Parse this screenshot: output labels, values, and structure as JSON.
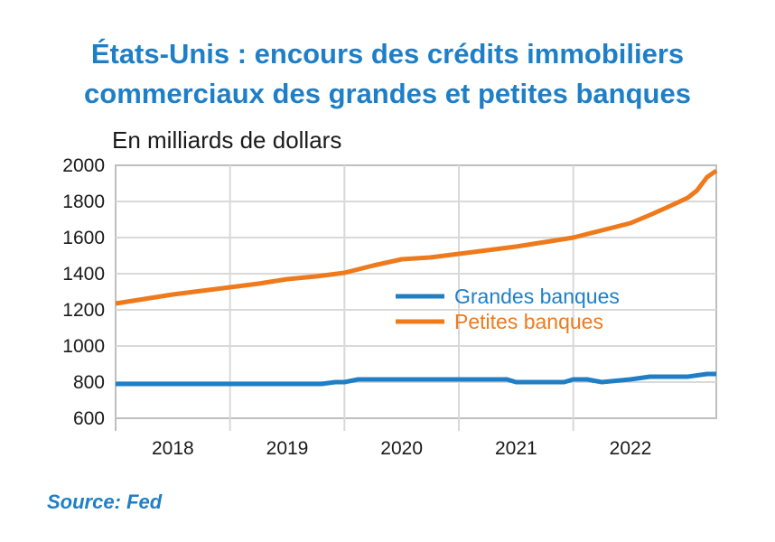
{
  "header": {
    "title_line1": "États-Unis : encours des crédits immobiliers",
    "title_line2": "commerciaux des grandes et petites banques",
    "unit_label": "En milliards de dollars"
  },
  "footer": {
    "source": "Source: Fed"
  },
  "colors": {
    "grandes": "#1f7fc6",
    "petites": "#ee7a1c",
    "grid": "#d9d9d9",
    "axis": "#bfbfbf"
  },
  "chart_data": {
    "type": "line",
    "title": "États-Unis : encours des crédits immobiliers commerciaux des grandes et petites banques",
    "ylabel": "En milliards de dollars",
    "ylim": [
      600,
      2000
    ],
    "yticks": [
      600,
      800,
      1000,
      1200,
      1400,
      1600,
      1800,
      2000
    ],
    "xlim": [
      2017.5,
      2022.75
    ],
    "xticks": [
      "2018",
      "2019",
      "2020",
      "2021",
      "2022"
    ],
    "grid": true,
    "legend_position": "center-right",
    "series": [
      {
        "name": "Grandes banques",
        "x": [
          2017.5,
          2018.0,
          2018.5,
          2019.0,
          2019.3,
          2019.42,
          2019.5,
          2019.62,
          2019.75,
          2020.0,
          2020.25,
          2020.5,
          2020.75,
          2020.92,
          2021.0,
          2021.25,
          2021.42,
          2021.5,
          2021.62,
          2021.75,
          2022.0,
          2022.17,
          2022.5,
          2022.67,
          2022.75
        ],
        "values": [
          790,
          790,
          790,
          790,
          790,
          800,
          800,
          815,
          815,
          815,
          815,
          815,
          815,
          815,
          800,
          800,
          800,
          815,
          815,
          800,
          815,
          830,
          830,
          845,
          845
        ]
      },
      {
        "name": "Petites banques",
        "x": [
          2017.5,
          2017.75,
          2018.0,
          2018.25,
          2018.5,
          2018.75,
          2019.0,
          2019.25,
          2019.5,
          2019.75,
          2020.0,
          2020.25,
          2020.5,
          2020.75,
          2021.0,
          2021.25,
          2021.5,
          2021.75,
          2022.0,
          2022.17,
          2022.33,
          2022.5,
          2022.58,
          2022.67,
          2022.75
        ],
        "values": [
          1235,
          1260,
          1285,
          1305,
          1325,
          1345,
          1370,
          1385,
          1405,
          1445,
          1480,
          1490,
          1510,
          1530,
          1550,
          1575,
          1600,
          1640,
          1680,
          1725,
          1770,
          1820,
          1860,
          1935,
          1970
        ]
      }
    ]
  }
}
